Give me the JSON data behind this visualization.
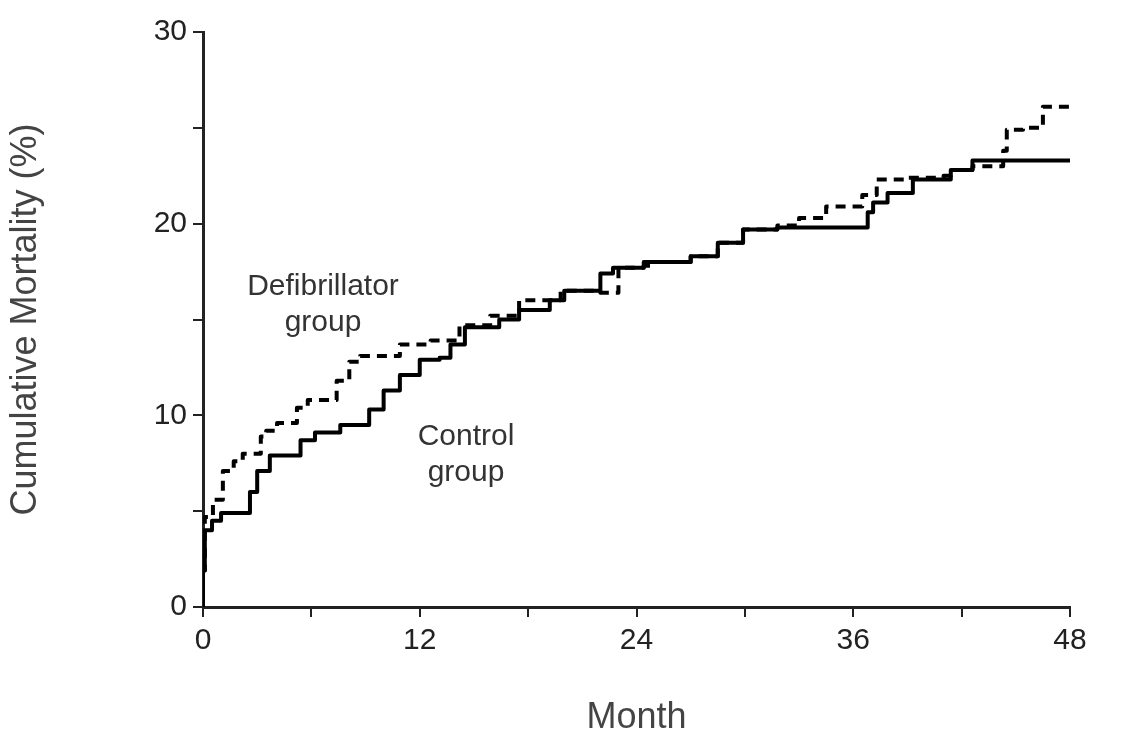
{
  "chart_data": {
    "type": "step",
    "xlabel": "Month",
    "ylabel": "Cumulative Mortality (%)",
    "xlim": [
      0,
      48
    ],
    "xticks": [
      0,
      {
        "value": 6,
        "label": null
      },
      12,
      {
        "value": 18,
        "label": null
      },
      24,
      {
        "value": 30,
        "label": null
      },
      36,
      {
        "value": 42,
        "label": null
      },
      48
    ],
    "ylim": [
      0,
      30
    ],
    "yticks": [
      0,
      {
        "value": 5,
        "label": null
      },
      10,
      {
        "value": 15,
        "label": null
      },
      20,
      {
        "value": 25,
        "label": null
      },
      30
    ],
    "grid": false,
    "legend": false,
    "marker": "none",
    "series": [
      {
        "name": "Defibrillator group",
        "color": "#000000",
        "line_style": "dashed",
        "x": [
          0,
          0.1,
          0.55,
          1.1,
          1.7,
          2.2,
          3.2,
          3.5,
          4.1,
          5.2,
          5.8,
          7.4,
          8.1,
          8.7,
          10.9,
          12.6,
          14.2,
          15.9,
          17.5,
          19.8,
          22,
          23,
          24.4,
          25,
          27,
          28.5,
          29.9,
          31.8,
          33,
          34.5,
          36.5,
          37.3,
          38.8,
          39,
          41,
          41.4,
          42.6,
          42.9,
          44.3,
          44.5,
          45.4,
          46.5,
          46.7,
          48
        ],
        "values": [
          0,
          1.9,
          4.7,
          5.6,
          7.1,
          7.6,
          8.0,
          8.9,
          9.2,
          9.6,
          10.4,
          10.8,
          11.8,
          12.8,
          13.1,
          13.7,
          13.9,
          14.7,
          15.2,
          16.0,
          16.5,
          16.4,
          17.7,
          17.8,
          18.0,
          18.3,
          19.0,
          19.7,
          19.9,
          20.3,
          20.9,
          21.5,
          22.3,
          22.4,
          22.4,
          22.5,
          22.8,
          23.0,
          23.0,
          23.8,
          24.9,
          25.0,
          26.1,
          26.1
        ]
      },
      {
        "name": "Control group",
        "color": "#000000",
        "line_style": "solid",
        "x": [
          0,
          0.1,
          0.5,
          1,
          2.6,
          3,
          3.7,
          5.4,
          6.2,
          7.6,
          9.2,
          10,
          10.9,
          12,
          13.1,
          13.7,
          14.5,
          16.4,
          17.5,
          19.2,
          20,
          22,
          22.7,
          24.4,
          27,
          28.5,
          29.9,
          31.8,
          33,
          36.8,
          37.1,
          37.9,
          39.3,
          41.4,
          42.6,
          42.9,
          48
        ],
        "values": [
          0,
          1.9,
          4.0,
          4.5,
          4.9,
          6.0,
          7.1,
          7.9,
          8.7,
          9.1,
          9.5,
          10.3,
          11.3,
          12.1,
          12.9,
          13.0,
          13.7,
          14.6,
          15.0,
          15.5,
          16.0,
          16.5,
          17.4,
          17.7,
          18.0,
          18.3,
          19.0,
          19.7,
          19.8,
          19.8,
          20.6,
          21.1,
          21.6,
          22.3,
          22.8,
          23.3,
          23.3
        ]
      }
    ]
  }
}
